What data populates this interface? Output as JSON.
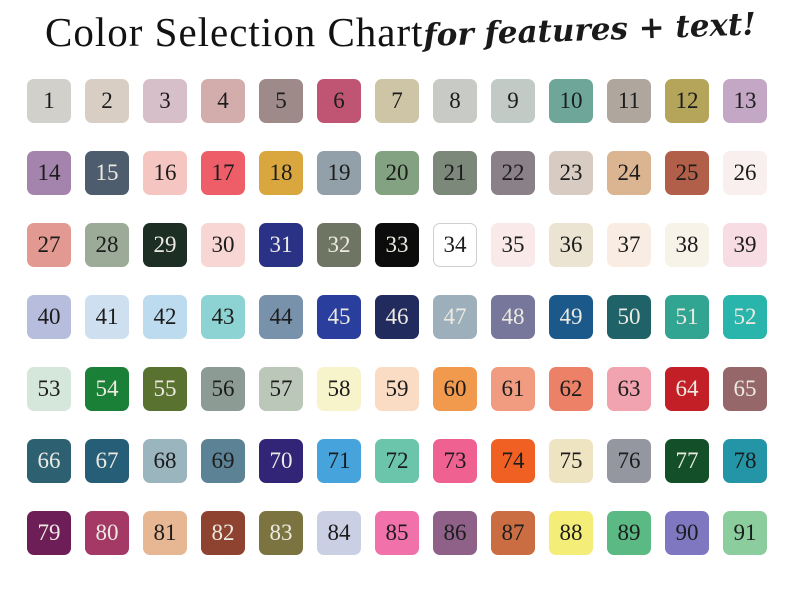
{
  "header": {
    "title": "Color Selection Chart",
    "subtitle": "for features + text!"
  },
  "chart_data": {
    "type": "table",
    "title": "Color Selection Chart",
    "subtitle": "for features + text!",
    "description": "Numbered color swatch selection grid, 7 rows x 13 columns, numbers 1-91",
    "columns": 13,
    "rows": 7,
    "swatches": [
      {
        "n": 1,
        "color": "#d2d0cb",
        "text": "dark"
      },
      {
        "n": 2,
        "color": "#d8cec4",
        "text": "dark"
      },
      {
        "n": 3,
        "color": "#d7bfca",
        "text": "dark"
      },
      {
        "n": 4,
        "color": "#d3acac",
        "text": "dark"
      },
      {
        "n": 5,
        "color": "#9e8a89",
        "text": "dark"
      },
      {
        "n": 6,
        "color": "#bf5572",
        "text": "dark"
      },
      {
        "n": 7,
        "color": "#cec5a6",
        "text": "dark"
      },
      {
        "n": 8,
        "color": "#c8cac5",
        "text": "dark"
      },
      {
        "n": 9,
        "color": "#c2cac5",
        "text": "dark"
      },
      {
        "n": 10,
        "color": "#6ea799",
        "text": "dark"
      },
      {
        "n": 11,
        "color": "#afa79e",
        "text": "dark"
      },
      {
        "n": 12,
        "color": "#b4a55b",
        "text": "dark"
      },
      {
        "n": 13,
        "color": "#c3a7c5",
        "text": "dark"
      },
      {
        "n": 14,
        "color": "#a484ac",
        "text": "dark"
      },
      {
        "n": 15,
        "color": "#4e5d6d",
        "text": "light"
      },
      {
        "n": 16,
        "color": "#f5c5c1",
        "text": "dark"
      },
      {
        "n": 17,
        "color": "#ed5e69",
        "text": "dark"
      },
      {
        "n": 18,
        "color": "#d9a73e",
        "text": "dark"
      },
      {
        "n": 19,
        "color": "#92a0aa",
        "text": "dark"
      },
      {
        "n": 20,
        "color": "#83a282",
        "text": "dark"
      },
      {
        "n": 21,
        "color": "#7c887a",
        "text": "dark"
      },
      {
        "n": 22,
        "color": "#898187",
        "text": "dark"
      },
      {
        "n": 23,
        "color": "#d8ccc2",
        "text": "dark"
      },
      {
        "n": 24,
        "color": "#dbb491",
        "text": "dark"
      },
      {
        "n": 25,
        "color": "#b25f49",
        "text": "dark"
      },
      {
        "n": 26,
        "color": "#f9efee",
        "text": "dark"
      },
      {
        "n": 27,
        "color": "#e29991",
        "text": "dark"
      },
      {
        "n": 28,
        "color": "#9caa98",
        "text": "dark"
      },
      {
        "n": 29,
        "color": "#1d2f25",
        "text": "light"
      },
      {
        "n": 30,
        "color": "#f7d6d3",
        "text": "dark"
      },
      {
        "n": 31,
        "color": "#2a3285",
        "text": "light"
      },
      {
        "n": 32,
        "color": "#6e7562",
        "text": "light"
      },
      {
        "n": 33,
        "color": "#0c0c0c",
        "text": "light"
      },
      {
        "n": 34,
        "color": "#ffffff",
        "text": "dark",
        "border": "#cfcfcf"
      },
      {
        "n": 35,
        "color": "#f9e9e9",
        "text": "dark"
      },
      {
        "n": 36,
        "color": "#ece4d3",
        "text": "dark"
      },
      {
        "n": 37,
        "color": "#f9ede3",
        "text": "dark"
      },
      {
        "n": 38,
        "color": "#f7f3e9",
        "text": "dark"
      },
      {
        "n": 39,
        "color": "#f7dde3",
        "text": "dark"
      },
      {
        "n": 40,
        "color": "#b7bddc",
        "text": "dark"
      },
      {
        "n": 41,
        "color": "#cedff0",
        "text": "dark"
      },
      {
        "n": 42,
        "color": "#bcdbef",
        "text": "dark"
      },
      {
        "n": 43,
        "color": "#8dd3d3",
        "text": "dark"
      },
      {
        "n": 44,
        "color": "#7992ac",
        "text": "dark"
      },
      {
        "n": 45,
        "color": "#2a3e9d",
        "text": "light"
      },
      {
        "n": 46,
        "color": "#222b5d",
        "text": "light"
      },
      {
        "n": 47,
        "color": "#9eafbc",
        "text": "light"
      },
      {
        "n": 48,
        "color": "#76779b",
        "text": "light"
      },
      {
        "n": 49,
        "color": "#1c598b",
        "text": "light"
      },
      {
        "n": 50,
        "color": "#1f6369",
        "text": "light"
      },
      {
        "n": 51,
        "color": "#32a592",
        "text": "light"
      },
      {
        "n": 52,
        "color": "#29b4ac",
        "text": "light"
      },
      {
        "n": 53,
        "color": "#d5e7db",
        "text": "dark"
      },
      {
        "n": 54,
        "color": "#1a7f37",
        "text": "light"
      },
      {
        "n": 55,
        "color": "#597230",
        "text": "light"
      },
      {
        "n": 56,
        "color": "#8d9b95",
        "text": "dark"
      },
      {
        "n": 57,
        "color": "#bbc7b9",
        "text": "dark"
      },
      {
        "n": 58,
        "color": "#f7f3cb",
        "text": "dark"
      },
      {
        "n": 59,
        "color": "#fadbc3",
        "text": "dark"
      },
      {
        "n": 60,
        "color": "#f1994d",
        "text": "dark"
      },
      {
        "n": 61,
        "color": "#f19c81",
        "text": "dark"
      },
      {
        "n": 62,
        "color": "#ed8167",
        "text": "dark"
      },
      {
        "n": 63,
        "color": "#f1a3af",
        "text": "dark"
      },
      {
        "n": 64,
        "color": "#c21f27",
        "text": "light"
      },
      {
        "n": 65,
        "color": "#956769",
        "text": "light"
      },
      {
        "n": 66,
        "color": "#2d6172",
        "text": "light"
      },
      {
        "n": 67,
        "color": "#265d77",
        "text": "light"
      },
      {
        "n": 68,
        "color": "#9bb5bf",
        "text": "dark"
      },
      {
        "n": 69,
        "color": "#5b8295",
        "text": "dark"
      },
      {
        "n": 70,
        "color": "#322577",
        "text": "light"
      },
      {
        "n": 71,
        "color": "#47a3db",
        "text": "dark"
      },
      {
        "n": 72,
        "color": "#6bc5aa",
        "text": "dark"
      },
      {
        "n": 73,
        "color": "#ef6191",
        "text": "dark"
      },
      {
        "n": 74,
        "color": "#f16023",
        "text": "dark"
      },
      {
        "n": 75,
        "color": "#eee4c2",
        "text": "dark"
      },
      {
        "n": 76,
        "color": "#94979f",
        "text": "dark"
      },
      {
        "n": 77,
        "color": "#135029",
        "text": "light"
      },
      {
        "n": 78,
        "color": "#2395a7",
        "text": "dark"
      },
      {
        "n": 79,
        "color": "#6d1e57",
        "text": "light"
      },
      {
        "n": 80,
        "color": "#a53965",
        "text": "light"
      },
      {
        "n": 81,
        "color": "#e7b793",
        "text": "dark"
      },
      {
        "n": 82,
        "color": "#8d432f",
        "text": "light"
      },
      {
        "n": 83,
        "color": "#7b7340",
        "text": "light"
      },
      {
        "n": 84,
        "color": "#cbcfe3",
        "text": "dark"
      },
      {
        "n": 85,
        "color": "#f171ab",
        "text": "dark"
      },
      {
        "n": 86,
        "color": "#8f6189",
        "text": "dark"
      },
      {
        "n": 87,
        "color": "#cb6d43",
        "text": "dark"
      },
      {
        "n": 88,
        "color": "#f4ed77",
        "text": "dark"
      },
      {
        "n": 89,
        "color": "#5bb983",
        "text": "dark"
      },
      {
        "n": 90,
        "color": "#7f77bf",
        "text": "dark"
      },
      {
        "n": 91,
        "color": "#8bcd9d",
        "text": "dark"
      }
    ]
  }
}
